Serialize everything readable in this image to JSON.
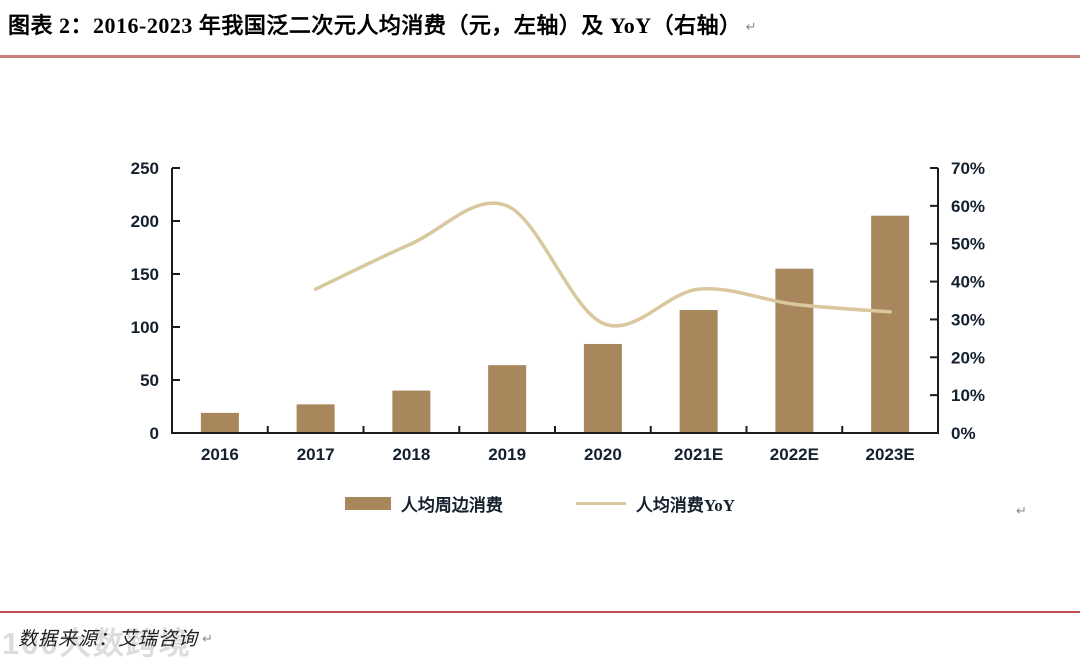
{
  "header": {
    "title": "图表 2：2016-2023 年我国泛二次元人均消费（元，左轴）及 YoY（右轴）",
    "return_mark": "↵"
  },
  "chart": {
    "return_mark": "↵"
  },
  "legend": {
    "bar_label": "人均周边消费",
    "line_label": "人均消费YoY"
  },
  "footer": {
    "watermark": "100大数跨境",
    "source": "数据来源：艾瑞咨询",
    "return_mark": "↵"
  },
  "colors": {
    "bar": "#a8875c",
    "line": "#d9c79e",
    "axis_text": "#14202e",
    "title_rule": "#c9807e",
    "footer_rule": "#c0504d"
  },
  "chart_data": {
    "type": "bar",
    "title": "2016-2023 年我国泛二次元人均消费（元，左轴）及 YoY（右轴）",
    "categories": [
      "2016",
      "2017",
      "2018",
      "2019",
      "2020",
      "2021E",
      "2022E",
      "2023E"
    ],
    "series": [
      {
        "name": "人均周边消费",
        "type": "bar",
        "axis": "left",
        "unit": "元",
        "values": [
          19,
          27,
          40,
          64,
          84,
          116,
          155,
          205
        ]
      },
      {
        "name": "人均消费YoY",
        "type": "line",
        "axis": "right",
        "unit": "%",
        "values": [
          null,
          38,
          50,
          60,
          29,
          38,
          34,
          32
        ]
      }
    ],
    "left_axis": {
      "min": 0,
      "max": 250,
      "ticks": [
        "0",
        "50",
        "100",
        "150",
        "200",
        "250"
      ]
    },
    "right_axis": {
      "min": 0,
      "max": 70,
      "ticks": [
        "0%",
        "10%",
        "20%",
        "30%",
        "40%",
        "50%",
        "60%",
        "70%"
      ]
    },
    "grid": false,
    "legend_position": "bottom"
  }
}
